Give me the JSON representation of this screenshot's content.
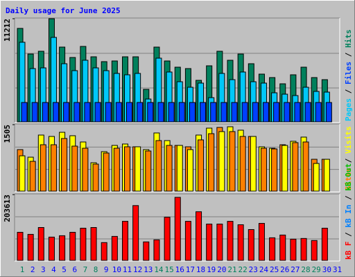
{
  "title": "Daily usage for June 2025",
  "legend_separator": " / ",
  "chart_data": [
    {
      "type": "bar",
      "ylim": [
        0,
        11212
      ],
      "yticks": [
        11212
      ],
      "series": [
        {
          "name": "Pages",
          "color": "#00C8F8",
          "values": [
            8671,
            5830,
            5905,
            9194,
            6354,
            5606,
            6727,
            5905,
            5606,
            5307,
            5158,
            5307,
            2541,
            6952,
            5457,
            4410,
            3812,
            4261,
            2691,
            5307,
            4634,
            5457,
            4410,
            4261,
            3214,
            3065,
            2915,
            3812,
            3364,
            3289,
            null
          ]
        },
        {
          "name": "Files",
          "color": "#0040FF",
          "values": [
            2168,
            2168,
            2168,
            2168,
            2168,
            2168,
            2168,
            2168,
            2168,
            2168,
            2168,
            2168,
            2168,
            2168,
            2168,
            2168,
            2168,
            2168,
            2168,
            2168,
            2168,
            2168,
            2168,
            2168,
            2168,
            2168,
            2168,
            2168,
            2168,
            2168,
            null
          ]
        },
        {
          "name": "Hits",
          "color": "#00805C",
          "values": [
            10166,
            7400,
            7699,
            11212,
            8148,
            7026,
            8222,
            7101,
            6578,
            6652,
            7101,
            7101,
            3588,
            8148,
            6652,
            5980,
            5830,
            4560,
            6129,
            7699,
            6727,
            7400,
            6354,
            5232,
            4859,
            4186,
            5158,
            5980,
            4859,
            4634,
            null
          ]
        }
      ]
    },
    {
      "type": "bar",
      "ylim": [
        0,
        1505
      ],
      "yticks": [
        1505
      ],
      "series": [
        {
          "name": "Sites",
          "color": "#FF8000",
          "values": [
            946,
            683,
            1055,
            1055,
            1195,
            1024,
            977,
            621,
            869,
            977,
            1009,
            1009,
            915,
            1148,
            1040,
            1040,
            1009,
            1164,
            1303,
            1443,
            1350,
            1241,
            1241,
            977,
            962,
            1055,
            1102,
            1117,
            729,
            729,
            null
          ]
        },
        {
          "name": "Visits",
          "color": "#FFFF00",
          "values": [
            807,
            776,
            1272,
            1241,
            1334,
            1257,
            1117,
            652,
            900,
            1040,
            1071,
            1009,
            946,
            1319,
            1148,
            1040,
            946,
            1272,
            1427,
            1350,
            1458,
            1381,
            1241,
            1009,
            977,
            1040,
            1133,
            1226,
            636,
            729,
            null
          ]
        }
      ]
    },
    {
      "type": "bar",
      "ylim": [
        0,
        203613
      ],
      "yticks": [
        203613
      ],
      "categories": [
        1,
        2,
        3,
        4,
        5,
        6,
        7,
        8,
        9,
        10,
        11,
        12,
        13,
        14,
        15,
        16,
        17,
        18,
        19,
        20,
        21,
        22,
        23,
        24,
        25,
        26,
        27,
        28,
        29,
        30,
        31
      ],
      "category_colors": [
        "#00805C",
        "#0000FF",
        "#0000FF",
        "#0000FF",
        "#0000FF",
        "#0000FF",
        "#00805C",
        "#00805C",
        "#0000FF",
        "#0000FF",
        "#0000FF",
        "#0000FF",
        "#0000FF",
        "#00805C",
        "#00805C",
        "#0000FF",
        "#0000FF",
        "#0000FF",
        "#0000FF",
        "#0000FF",
        "#00805C",
        "#00805C",
        "#0000FF",
        "#0000FF",
        "#0000FF",
        "#0000FF",
        "#0000FF",
        "#00805C",
        "#00805C",
        "#0000FF",
        "#0000FF"
      ],
      "series": [
        {
          "name": "kB F",
          "color": "#FF0000",
          "values": [
            88162,
            81865,
            102856,
            73469,
            77667,
            88162,
            100757,
            102856,
            56675,
            75568,
            121749,
            170027,
            58775,
            65072,
            134343,
            195217,
            121749,
            151137,
            113353,
            113353,
            121749,
            111254,
            96560,
            115452,
            71370,
            79766,
            67171,
            69271,
            62973,
            100757,
            null
          ]
        },
        {
          "name": "kB In",
          "color": "#0080FF",
          "values": [
            0,
            0,
            0,
            0,
            0,
            0,
            0,
            0,
            0,
            0,
            0,
            0,
            0,
            0,
            0,
            0,
            0,
            0,
            0,
            0,
            0,
            0,
            0,
            0,
            0,
            0,
            0,
            0,
            0,
            0,
            null
          ]
        },
        {
          "name": "kB Out",
          "color": "#00C000",
          "values": [
            0,
            0,
            0,
            0,
            0,
            0,
            0,
            0,
            0,
            0,
            0,
            0,
            0,
            0,
            0,
            0,
            0,
            0,
            0,
            0,
            0,
            0,
            0,
            0,
            0,
            0,
            0,
            0,
            0,
            0,
            null
          ]
        }
      ]
    }
  ]
}
